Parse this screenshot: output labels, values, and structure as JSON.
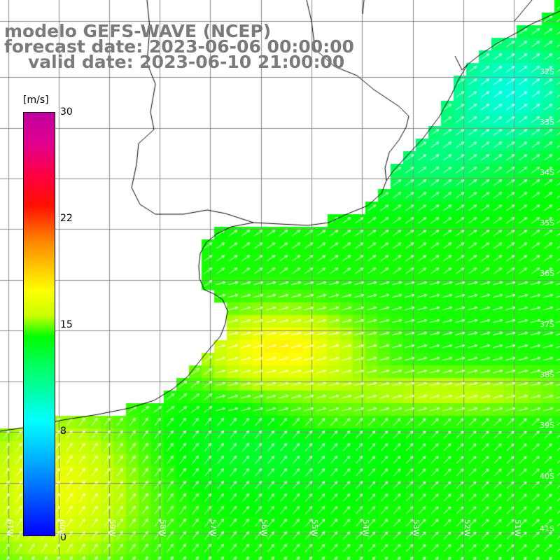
{
  "title": {
    "model": "modelo GEFS-WAVE (NCEP)",
    "forecast": "forecast date: 2023-06-06 00:00:00",
    "valid": "valid date: 2023-06-10 21:00:00"
  },
  "colorbar": {
    "unit": "[m/s]",
    "ticks": [
      "30",
      "22",
      "15",
      "8",
      "0"
    ],
    "range": [
      0,
      30
    ],
    "colors": {
      "low": "#0000ff",
      "cyan": "#00ffff",
      "green": "#00ff00",
      "yellow": "#ffff00",
      "orange": "#ff8000",
      "red": "#ff0000",
      "high": "#c000a0"
    }
  },
  "lat_labels": [
    "32S",
    "33S",
    "34S",
    "35S",
    "36S",
    "37S",
    "38S",
    "39S",
    "40S",
    "41S"
  ],
  "lon_labels": [
    "61W",
    "60W",
    "59W",
    "58W",
    "57W",
    "56W",
    "55W",
    "54W",
    "53W",
    "52W",
    "51W"
  ],
  "map": {
    "land_color": "#ffffff",
    "coastline_color": "#000000",
    "gridline_color": "#7f7f7f",
    "arrow_color": "#ffffff",
    "field": "wind speed with direction arrows"
  }
}
